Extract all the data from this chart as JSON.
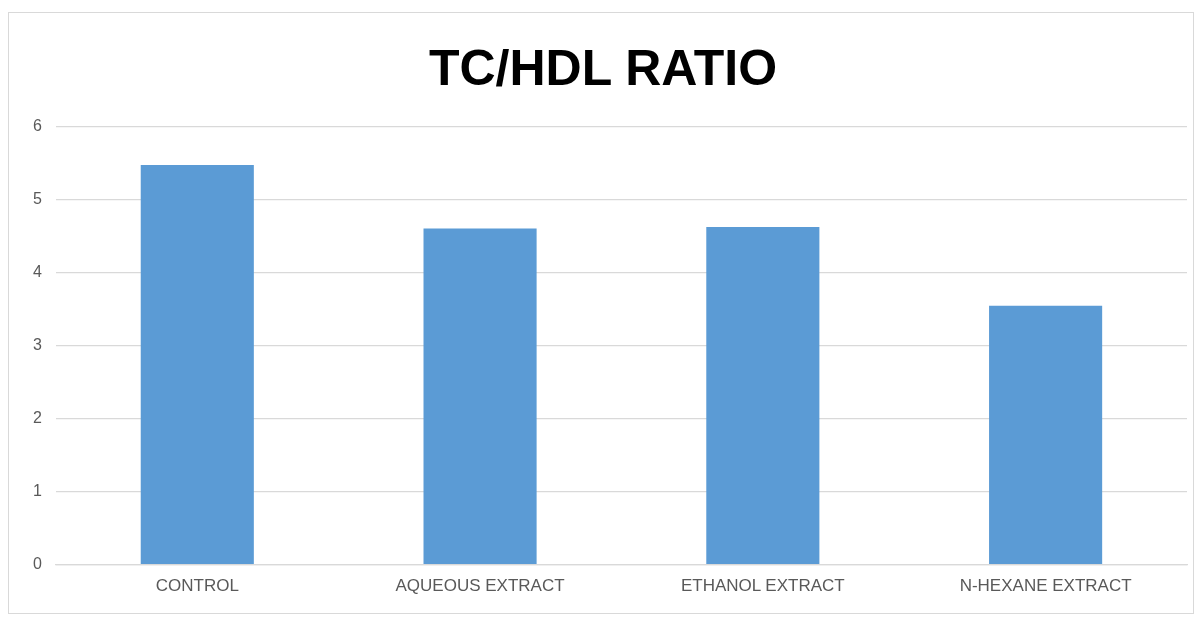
{
  "chart_data": {
    "type": "bar",
    "title": "TC/HDL RATIO",
    "categories": [
      "CONTROL",
      "AQUEOUS EXTRACT",
      "ETHANOL EXTRACT",
      "N-HEXANE EXTRACT"
    ],
    "values": [
      5.48,
      4.61,
      4.63,
      3.55
    ],
    "color": "#5b9bd5",
    "ylim": [
      0,
      6
    ],
    "yticks": [
      0,
      1,
      2,
      3,
      4,
      5,
      6
    ],
    "grid": "y"
  }
}
